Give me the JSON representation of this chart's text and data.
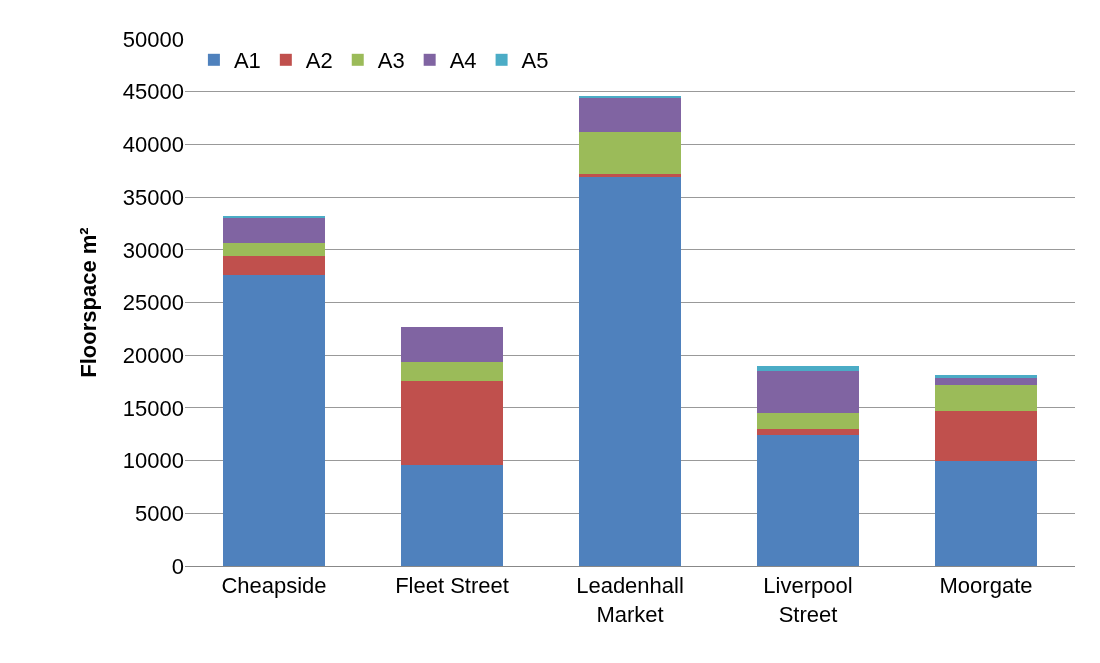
{
  "chart_data": {
    "type": "bar",
    "stacked": true,
    "ylabel": "Floorspace m²",
    "categories": [
      "Cheapside",
      "Fleet Street",
      "Leadenhall Market",
      "Liverpool Street",
      "Moorgate"
    ],
    "series": [
      {
        "name": "A1",
        "color": "#4f81bd",
        "values": [
          27600,
          9600,
          36900,
          12400,
          10000
        ]
      },
      {
        "name": "A2",
        "color": "#c0504d",
        "values": [
          1800,
          7950,
          300,
          600,
          4700
        ]
      },
      {
        "name": "A3",
        "color": "#9bbb59",
        "values": [
          1250,
          1800,
          4000,
          1500,
          2500
        ]
      },
      {
        "name": "A4",
        "color": "#8064a2",
        "values": [
          2450,
          3350,
          3250,
          4000,
          600
        ]
      },
      {
        "name": "A5",
        "color": "#4bacc6",
        "values": [
          150,
          0,
          150,
          450,
          300
        ]
      }
    ],
    "ylim": [
      0,
      50000
    ],
    "yticks": [
      0,
      5000,
      10000,
      15000,
      20000,
      25000,
      30000,
      35000,
      40000,
      45000,
      50000
    ],
    "grid": "y",
    "legend": "top left"
  }
}
